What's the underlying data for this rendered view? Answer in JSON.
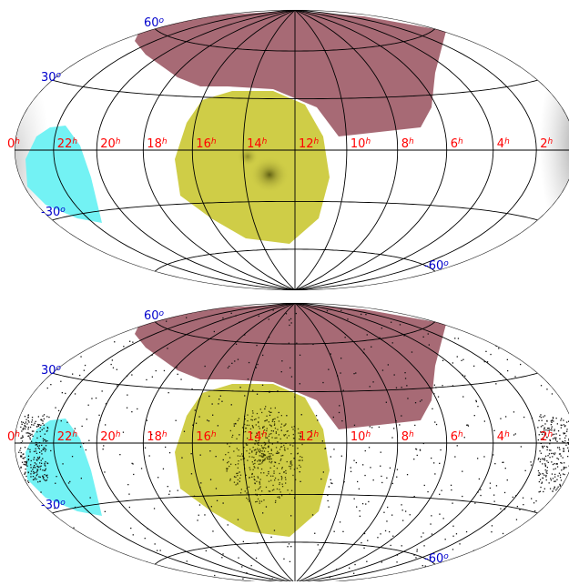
{
  "panels": [
    {
      "name": "top-panel",
      "background": "smooth-density",
      "ra_labels": [
        {
          "ra": 24,
          "text": "0",
          "sup": "h"
        },
        {
          "ra": 22,
          "text": "22",
          "sup": "h"
        },
        {
          "ra": 20,
          "text": "20",
          "sup": "h"
        },
        {
          "ra": 18,
          "text": "18",
          "sup": "h"
        },
        {
          "ra": 16,
          "text": "16",
          "sup": "h"
        },
        {
          "ra": 14,
          "text": "14",
          "sup": "h"
        },
        {
          "ra": 12,
          "text": "12",
          "sup": "h"
        },
        {
          "ra": 10,
          "text": "10",
          "sup": "h"
        },
        {
          "ra": 8,
          "text": "8",
          "sup": "h"
        },
        {
          "ra": 6,
          "text": "6",
          "sup": "h"
        },
        {
          "ra": 4,
          "text": "4",
          "sup": "h"
        },
        {
          "ra": 2,
          "text": "2",
          "sup": "h"
        }
      ],
      "dec_labels": [
        {
          "dec": 60,
          "text": "60",
          "sup": "o"
        },
        {
          "dec": 30,
          "text": "30",
          "sup": "o"
        },
        {
          "dec": -30,
          "text": "-30",
          "sup": "o"
        },
        {
          "dec": -60,
          "text": "-60",
          "sup": "o"
        }
      ]
    },
    {
      "name": "bottom-panel",
      "background": "point-sources",
      "ra_labels": [
        {
          "ra": 24,
          "text": "0",
          "sup": "h"
        },
        {
          "ra": 22,
          "text": "22",
          "sup": "h"
        },
        {
          "ra": 20,
          "text": "20",
          "sup": "h"
        },
        {
          "ra": 18,
          "text": "18",
          "sup": "h"
        },
        {
          "ra": 16,
          "text": "16",
          "sup": "h"
        },
        {
          "ra": 14,
          "text": "14",
          "sup": "h"
        },
        {
          "ra": 12,
          "text": "12",
          "sup": "h"
        },
        {
          "ra": 10,
          "text": "10",
          "sup": "h"
        },
        {
          "ra": 8,
          "text": "8",
          "sup": "h"
        },
        {
          "ra": 6,
          "text": "6",
          "sup": "h"
        },
        {
          "ra": 4,
          "text": "4",
          "sup": "h"
        },
        {
          "ra": 2,
          "text": "2",
          "sup": "h"
        }
      ],
      "dec_labels": [
        {
          "dec": 60,
          "text": "60",
          "sup": "o"
        },
        {
          "dec": 30,
          "text": "30",
          "sup": "o"
        },
        {
          "dec": -30,
          "text": "-30",
          "sup": "o"
        },
        {
          "dec": -60,
          "text": "-60",
          "sup": "o"
        }
      ]
    }
  ],
  "colors": {
    "ra_label": "#ff0000",
    "dec_label": "#0000cc",
    "grid": "#000000",
    "region_north": "#a76a75",
    "region_center": "#cfcd47",
    "region_west": "#73f2f4"
  },
  "projection": "hammer-aitoff",
  "center_ra_hours": 12
}
